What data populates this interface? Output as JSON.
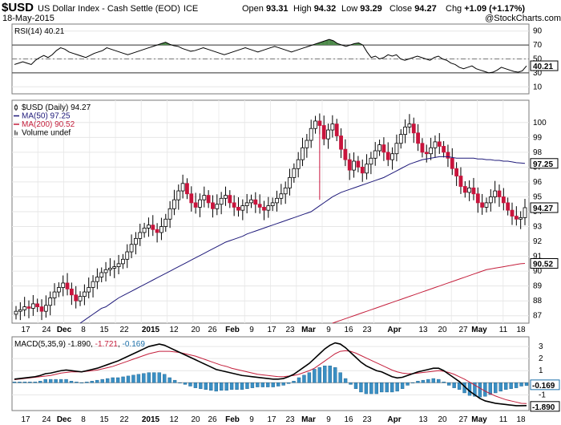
{
  "header": {
    "symbol": "$USD",
    "name": "US Dollar Index - Cash Settle (EOD)",
    "exchange": "ICE",
    "date": "18-May-2015",
    "open_label": "Open",
    "open": "93.31",
    "high_label": "High",
    "high": "94.32",
    "low_label": "Low",
    "low": "93.29",
    "close_label": "Close",
    "close": "94.27",
    "chg_label": "Chg",
    "chg": "+1.09 (+1.17%)",
    "watermark": "@StockCharts.com"
  },
  "chart_data": [
    {
      "type": "line",
      "title": "RSI(14) 40.21",
      "ylim": [
        0,
        100
      ],
      "yticks": [
        10,
        30,
        50,
        70,
        90
      ],
      "reference_lines": [
        30,
        70
      ],
      "last_value_label": "40.21",
      "x_labels": [
        "17",
        "24",
        "Dec",
        "8",
        "15",
        "22",
        "2015",
        "12",
        "20",
        "26",
        "Feb",
        "9",
        "17",
        "23",
        "Mar",
        "9",
        "16",
        "23",
        "Apr",
        "13",
        "20",
        "27",
        "May",
        "11",
        "18"
      ],
      "values": [
        42,
        44,
        46,
        44,
        42,
        48,
        52,
        55,
        52,
        56,
        62,
        66,
        64,
        60,
        58,
        56,
        54,
        52,
        55,
        58,
        60,
        62,
        66,
        64,
        62,
        60,
        58,
        56,
        58,
        60,
        62,
        64,
        66,
        68,
        70,
        72,
        74,
        71,
        69,
        68,
        65,
        63,
        61,
        62,
        64,
        66,
        64,
        62,
        60,
        58,
        56,
        58,
        60,
        62,
        64,
        66,
        64,
        62,
        60,
        62,
        64,
        66,
        68,
        66,
        64,
        62,
        60,
        62,
        64,
        66,
        68,
        70,
        72,
        74,
        76,
        78,
        76,
        72,
        70,
        68,
        70,
        72,
        73,
        70,
        60,
        52,
        54,
        50,
        52,
        56,
        54,
        56,
        50,
        48,
        50,
        52,
        54,
        52,
        50,
        48,
        52,
        54,
        50,
        48,
        44,
        42,
        38,
        36,
        38,
        40,
        36,
        34,
        32,
        30,
        31,
        34,
        38,
        36,
        34,
        32,
        31,
        33,
        40
      ]
    },
    {
      "type": "candlestick",
      "title": "$USD (Daily) 94.27",
      "legend": [
        {
          "name": "$USD (Daily) 94.27",
          "color": "#000000"
        },
        {
          "name": "MA(50) 97.25",
          "color": "#1f1a7a"
        },
        {
          "name": "MA(200) 90.52",
          "color": "#c41f3c"
        },
        {
          "name": "Volume undef",
          "color": "#000000"
        }
      ],
      "ylim": [
        86.5,
        101.5
      ],
      "yticks": [
        87,
        88,
        89,
        90,
        91,
        92,
        93,
        94,
        95,
        96,
        97,
        98,
        99,
        100
      ],
      "last_price_label": "94.27",
      "ma50_label": "97.25",
      "ma200_label": "90.52",
      "closes": [
        87.3,
        87.4,
        87.6,
        87.5,
        87.8,
        87.6,
        87.3,
        87.7,
        88.2,
        88.6,
        88.9,
        89.2,
        88.8,
        88.4,
        88.0,
        88.3,
        88.6,
        88.9,
        89.3,
        89.6,
        89.9,
        90.1,
        90.2,
        90.3,
        90.5,
        90.8,
        91.3,
        91.8,
        92.2,
        92.6,
        92.9,
        93.1,
        92.8,
        92.6,
        93.0,
        93.5,
        94.2,
        94.8,
        95.4,
        95.9,
        95.2,
        94.6,
        94.3,
        94.8,
        95.1,
        94.6,
        94.2,
        94.5,
        94.9,
        95.1,
        94.6,
        94.3,
        94.1,
        94.4,
        94.6,
        94.8,
        94.5,
        94.3,
        94.1,
        94.4,
        94.6,
        94.9,
        95.2,
        95.6,
        96.3,
        96.9,
        97.5,
        98.3,
        98.8,
        99.6,
        100.1,
        99.8,
        98.9,
        99.5,
        99.9,
        99.1,
        98.2,
        97.5,
        96.8,
        97.4,
        97.0,
        96.6,
        97.2,
        97.6,
        98.1,
        98.5,
        98.0,
        97.5,
        97.9,
        98.6,
        99.2,
        99.7,
        99.9,
        99.3,
        98.6,
        98.0,
        97.9,
        98.3,
        98.7,
        98.4,
        98.0,
        97.6,
        96.9,
        96.4,
        95.7,
        95.3,
        95.6,
        95.2,
        94.6,
        94.3,
        94.6,
        95.0,
        95.4,
        95.0,
        94.6,
        94.1,
        93.7,
        93.5,
        93.6,
        94.27
      ],
      "ma50": [
        null,
        null,
        null,
        null,
        null,
        null,
        null,
        null,
        null,
        null,
        null,
        null,
        null,
        null,
        null,
        86.5,
        86.7,
        86.9,
        87.1,
        87.3,
        87.5,
        87.6,
        87.8,
        88.0,
        88.2,
        88.35,
        88.5,
        88.65,
        88.8,
        88.95,
        89.1,
        89.25,
        89.4,
        89.55,
        89.7,
        89.85,
        90.0,
        90.15,
        90.3,
        90.45,
        90.6,
        90.75,
        90.9,
        91.05,
        91.2,
        91.35,
        91.5,
        91.65,
        91.8,
        91.95,
        92.05,
        92.15,
        92.25,
        92.35,
        92.5,
        92.6,
        92.7,
        92.8,
        92.9,
        93.0,
        93.1,
        93.2,
        93.3,
        93.4,
        93.5,
        93.6,
        93.7,
        93.8,
        93.9,
        94.0,
        94.2,
        94.4,
        94.6,
        94.8,
        95.0,
        95.15,
        95.3,
        95.4,
        95.5,
        95.6,
        95.7,
        95.8,
        95.9,
        96.0,
        96.1,
        96.2,
        96.3,
        96.45,
        96.6,
        96.75,
        96.9,
        97.05,
        97.2,
        97.3,
        97.4,
        97.5,
        97.55,
        97.6,
        97.65,
        97.7,
        97.7,
        97.7,
        97.65,
        97.6,
        97.6,
        97.6,
        97.6,
        97.6,
        97.55,
        97.55,
        97.5,
        97.5,
        97.45,
        97.45,
        97.4,
        97.4,
        97.35,
        97.3,
        97.28,
        97.25
      ],
      "ma200": [
        null,
        null,
        null,
        null,
        null,
        null,
        null,
        null,
        null,
        null,
        null,
        null,
        null,
        null,
        null,
        null,
        null,
        null,
        null,
        null,
        null,
        null,
        null,
        null,
        null,
        null,
        null,
        null,
        null,
        null,
        null,
        null,
        null,
        null,
        null,
        null,
        null,
        null,
        null,
        null,
        null,
        null,
        null,
        null,
        null,
        null,
        null,
        null,
        null,
        null,
        null,
        null,
        null,
        null,
        null,
        null,
        null,
        null,
        null,
        null,
        null,
        null,
        null,
        null,
        null,
        null,
        null,
        null,
        null,
        null,
        null,
        null,
        null,
        null,
        86.5,
        86.6,
        86.7,
        86.8,
        86.9,
        87.0,
        87.1,
        87.2,
        87.3,
        87.4,
        87.5,
        87.6,
        87.7,
        87.8,
        87.9,
        88.0,
        88.1,
        88.2,
        88.3,
        88.4,
        88.5,
        88.6,
        88.7,
        88.8,
        88.9,
        89.0,
        89.1,
        89.2,
        89.3,
        89.4,
        89.5,
        89.6,
        89.7,
        89.8,
        89.9,
        90.0,
        90.1,
        90.15,
        90.2,
        90.25,
        90.3,
        90.35,
        90.4,
        90.45,
        90.5,
        90.52
      ]
    },
    {
      "type": "line",
      "title": "MACD(5,35,9) -1.890, -1.721, -0.169",
      "legend": [
        {
          "name": "MACD(5,35,9)",
          "color": "#000000",
          "value": "-1.890"
        },
        {
          "name": "signal",
          "color": "#c41f3c",
          "value": "-1.721"
        },
        {
          "name": "histogram",
          "color": "#1b6fa8",
          "value": "-0.169"
        }
      ],
      "ylim": [
        -2.3,
        3.8
      ],
      "yticks": [
        3,
        2,
        1,
        -1
      ],
      "value_labels": [
        "-0.169",
        "-1.890"
      ],
      "macd": [
        0.3,
        0.35,
        0.4,
        0.45,
        0.5,
        0.6,
        0.75,
        0.8,
        0.9,
        1.0,
        1.05,
        1.0,
        0.95,
        0.9,
        1.0,
        1.1,
        1.2,
        1.35,
        1.5,
        1.65,
        1.8,
        2.0,
        2.2,
        2.4,
        2.6,
        2.8,
        3.0,
        3.1,
        3.2,
        3.1,
        2.9,
        2.7,
        2.5,
        2.3,
        2.1,
        1.9,
        1.7,
        1.5,
        1.3,
        1.1,
        1.0,
        0.9,
        0.8,
        0.7,
        0.6,
        0.55,
        0.5,
        0.45,
        0.4,
        0.35,
        0.3,
        0.3,
        0.35,
        0.5,
        0.7,
        1.0,
        1.3,
        1.6,
        2.0,
        2.4,
        2.8,
        3.1,
        3.3,
        3.2,
        2.9,
        2.5,
        2.1,
        1.7,
        1.4,
        1.2,
        1.0,
        0.9,
        0.7,
        0.5,
        0.4,
        0.45,
        0.6,
        0.75,
        0.9,
        1.0,
        1.1,
        1.2,
        1.2,
        1.0,
        0.7,
        0.4,
        0.1,
        -0.3,
        -0.7,
        -1.0,
        -1.3,
        -1.5,
        -1.6,
        -1.7,
        -1.75,
        -1.8,
        -1.85,
        -1.9,
        -1.9,
        -1.89
      ],
      "signal": [
        0.25,
        0.3,
        0.35,
        0.4,
        0.45,
        0.5,
        0.55,
        0.6,
        0.7,
        0.8,
        0.85,
        0.9,
        0.9,
        0.9,
        0.95,
        1.0,
        1.05,
        1.15,
        1.25,
        1.35,
        1.5,
        1.65,
        1.8,
        1.95,
        2.1,
        2.25,
        2.4,
        2.5,
        2.6,
        2.6,
        2.6,
        2.55,
        2.5,
        2.4,
        2.3,
        2.2,
        2.05,
        1.9,
        1.75,
        1.6,
        1.45,
        1.35,
        1.2,
        1.1,
        1.0,
        0.9,
        0.8,
        0.7,
        0.65,
        0.6,
        0.55,
        0.5,
        0.5,
        0.55,
        0.6,
        0.7,
        0.85,
        1.0,
        1.2,
        1.5,
        1.8,
        2.1,
        2.4,
        2.6,
        2.65,
        2.6,
        2.45,
        2.25,
        2.05,
        1.85,
        1.65,
        1.45,
        1.25,
        1.05,
        0.9,
        0.8,
        0.75,
        0.75,
        0.8,
        0.85,
        0.9,
        0.95,
        1.0,
        0.95,
        0.85,
        0.7,
        0.5,
        0.3,
        0.05,
        -0.2,
        -0.45,
        -0.7,
        -0.9,
        -1.1,
        -1.25,
        -1.4,
        -1.5,
        -1.6,
        -1.7,
        -1.72
      ]
    }
  ]
}
